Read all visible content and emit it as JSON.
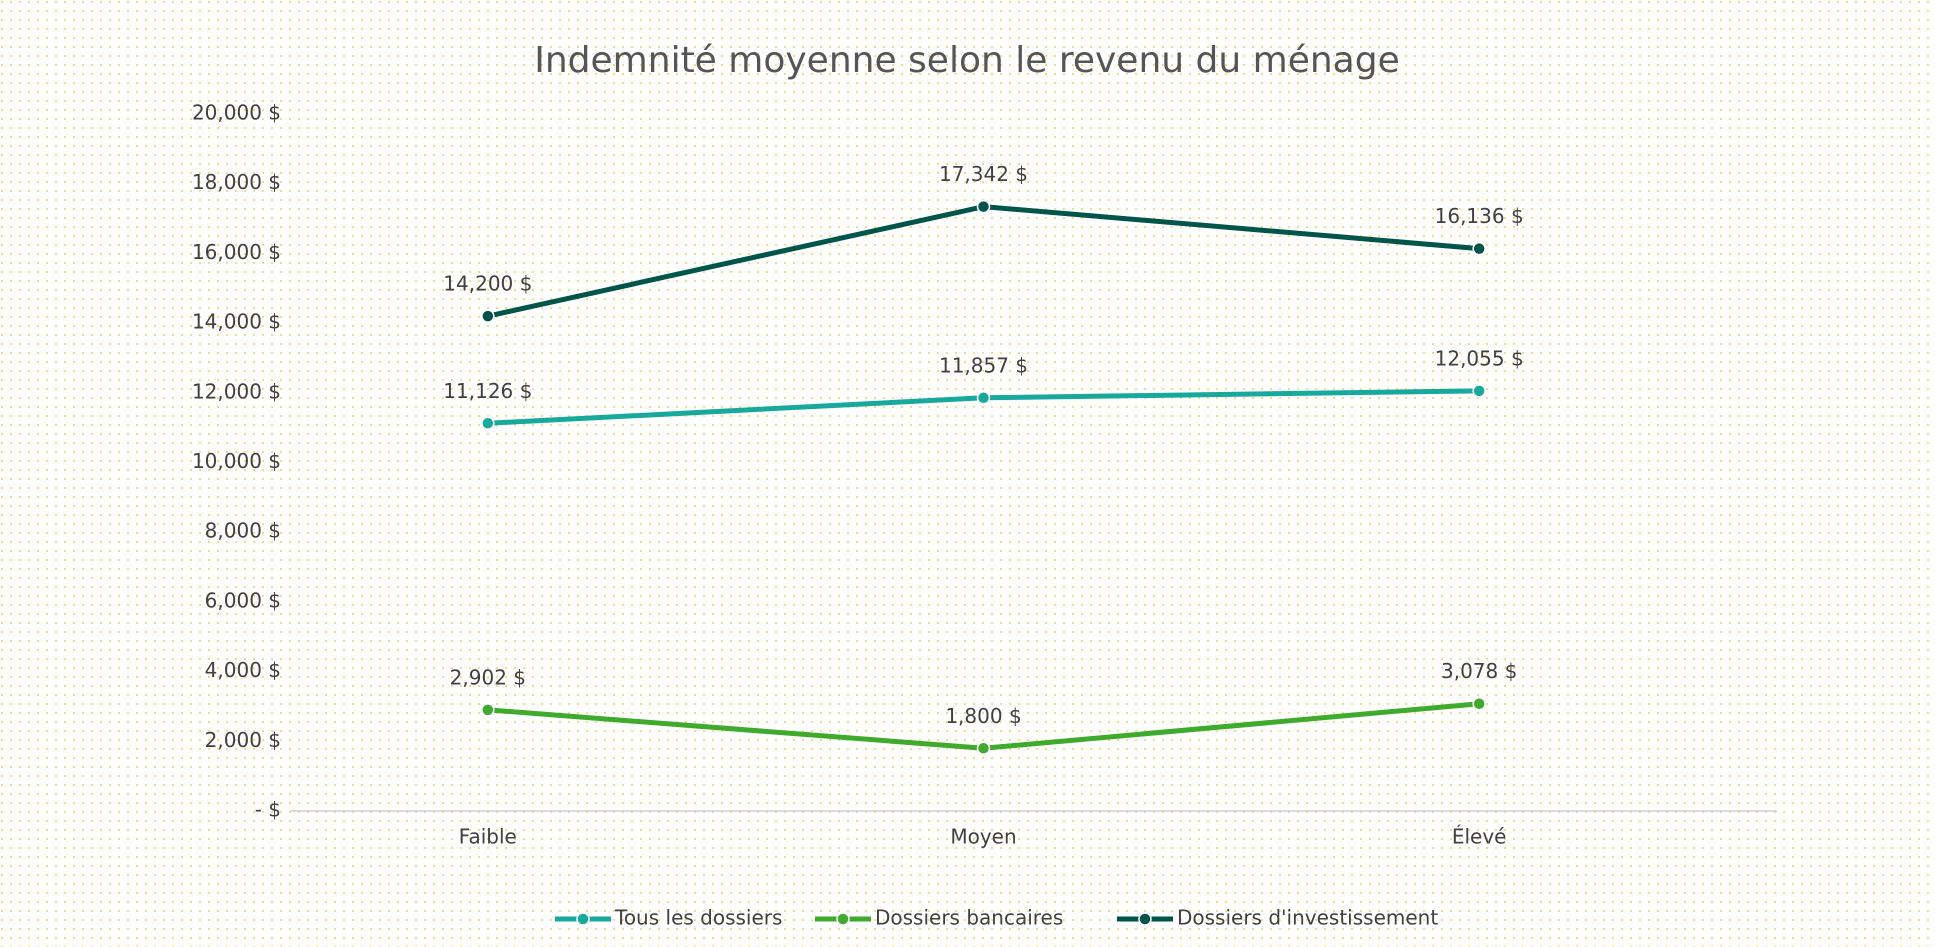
{
  "chart_data": {
    "type": "line",
    "title": "Indemnité moyenne selon le revenu du ménage",
    "categories": [
      "Faible",
      "Moyen",
      "Élevé"
    ],
    "series": [
      {
        "name": "Tous les dossiers",
        "color": "#17a99b",
        "values": [
          11126,
          11857,
          12055
        ],
        "value_labels": [
          "11,126 $",
          "11,857 $",
          "12,055 $"
        ]
      },
      {
        "name": "Dossiers bancaires",
        "color": "#3fab2d",
        "values": [
          2902,
          1800,
          3078
        ],
        "value_labels": [
          "2,902 $",
          "1,800 $",
          "3,078 $"
        ]
      },
      {
        "name": "Dossiers d'investissement",
        "color": "#00554b",
        "values": [
          14200,
          17342,
          16136
        ],
        "value_labels": [
          "14,200 $",
          "17,342 $",
          "16,136 $"
        ]
      }
    ],
    "ylim": [
      0,
      20000
    ],
    "yticks": [
      {
        "value": 0,
        "label": "- $"
      },
      {
        "value": 2000,
        "label": "2,000 $"
      },
      {
        "value": 4000,
        "label": "4,000 $"
      },
      {
        "value": 6000,
        "label": "6,000 $"
      },
      {
        "value": 8000,
        "label": "8,000 $"
      },
      {
        "value": 10000,
        "label": "10,000 $"
      },
      {
        "value": 12000,
        "label": "12,000 $"
      },
      {
        "value": 14000,
        "label": "14,000 $"
      },
      {
        "value": 16000,
        "label": "16,000 $"
      },
      {
        "value": 18000,
        "label": "18,000 $"
      },
      {
        "value": 20000,
        "label": "20,000 $"
      }
    ],
    "legend": "bottom"
  }
}
